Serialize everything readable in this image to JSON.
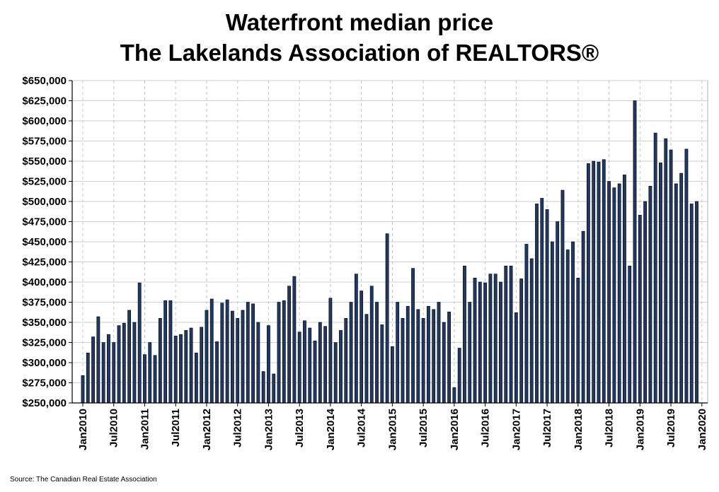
{
  "chart_data": {
    "type": "bar",
    "title": "Waterfront median price",
    "subtitle": "The Lakelands Association of REALTORS®",
    "xlabel": "",
    "ylabel": "",
    "ylim": [
      250000,
      650000
    ],
    "yticks": [
      250000,
      275000,
      300000,
      325000,
      350000,
      375000,
      400000,
      425000,
      450000,
      475000,
      500000,
      525000,
      550000,
      575000,
      600000,
      625000,
      650000
    ],
    "ytick_labels": [
      "$250,000",
      "$275,000",
      "$300,000",
      "$325,000",
      "$350,000",
      "$375,000",
      "$400,000",
      "$425,000",
      "$450,000",
      "$475,000",
      "$500,000",
      "$525,000",
      "$550,000",
      "$575,000",
      "$600,000",
      "$625,000",
      "$650,000"
    ],
    "xtick_labels": [
      "Jan2010",
      "Jul2010",
      "Jan2011",
      "Jul2011",
      "Jan2012",
      "Jul2012",
      "Jan2013",
      "Jul2013",
      "Jan2014",
      "Jul2014",
      "Jan2015",
      "Jul2015",
      "Jan2016",
      "Jul2016",
      "Jan2017",
      "Jul2017",
      "Jan2018",
      "Jul2018",
      "Jan2019",
      "Jul2019",
      "Jan2020"
    ],
    "grid": true,
    "bar_color": "#1f3864",
    "categories": [
      "Jan2010",
      "Feb2010",
      "Mar2010",
      "Apr2010",
      "May2010",
      "Jun2010",
      "Jul2010",
      "Aug2010",
      "Sep2010",
      "Oct2010",
      "Nov2010",
      "Dec2010",
      "Jan2011",
      "Feb2011",
      "Mar2011",
      "Apr2011",
      "May2011",
      "Jun2011",
      "Jul2011",
      "Aug2011",
      "Sep2011",
      "Oct2011",
      "Nov2011",
      "Dec2011",
      "Jan2012",
      "Feb2012",
      "Mar2012",
      "Apr2012",
      "May2012",
      "Jun2012",
      "Jul2012",
      "Aug2012",
      "Sep2012",
      "Oct2012",
      "Nov2012",
      "Dec2012",
      "Jan2013",
      "Feb2013",
      "Mar2013",
      "Apr2013",
      "May2013",
      "Jun2013",
      "Jul2013",
      "Aug2013",
      "Sep2013",
      "Oct2013",
      "Nov2013",
      "Dec2013",
      "Jan2014",
      "Feb2014",
      "Mar2014",
      "Apr2014",
      "May2014",
      "Jun2014",
      "Jul2014",
      "Aug2014",
      "Sep2014",
      "Oct2014",
      "Nov2014",
      "Dec2014",
      "Jan2015",
      "Feb2015",
      "Mar2015",
      "Apr2015",
      "May2015",
      "Jun2015",
      "Jul2015",
      "Aug2015",
      "Sep2015",
      "Oct2015",
      "Nov2015",
      "Dec2015",
      "Jan2016",
      "Feb2016",
      "Mar2016",
      "Apr2016",
      "May2016",
      "Jun2016",
      "Jul2016",
      "Aug2016",
      "Sep2016",
      "Oct2016",
      "Nov2016",
      "Dec2016",
      "Jan2017",
      "Feb2017",
      "Mar2017",
      "Apr2017",
      "May2017",
      "Jun2017",
      "Jul2017",
      "Aug2017",
      "Sep2017",
      "Oct2017",
      "Nov2017",
      "Dec2017",
      "Jan2018",
      "Feb2018",
      "Mar2018",
      "Apr2018",
      "May2018",
      "Jun2018",
      "Jul2018",
      "Aug2018",
      "Sep2018",
      "Oct2018",
      "Nov2018",
      "Dec2018",
      "Jan2019",
      "Feb2019",
      "Mar2019",
      "Apr2019",
      "May2019",
      "Jun2019",
      "Jul2019",
      "Aug2019",
      "Sep2019",
      "Oct2019",
      "Nov2019",
      "Dec2019"
    ],
    "values": [
      284000,
      312000,
      332000,
      357000,
      325000,
      335000,
      325000,
      346000,
      349000,
      365000,
      350000,
      399000,
      310000,
      325000,
      309000,
      355000,
      377000,
      377000,
      333000,
      335000,
      340000,
      343000,
      312000,
      344000,
      365000,
      379000,
      326000,
      374000,
      378000,
      364000,
      355000,
      365000,
      375000,
      373000,
      350000,
      289000,
      346000,
      286000,
      375000,
      377000,
      395000,
      407000,
      338000,
      352000,
      343000,
      327000,
      350000,
      345000,
      380000,
      325000,
      340000,
      355000,
      375000,
      410000,
      389000,
      360000,
      395000,
      375000,
      347000,
      460000,
      320000,
      375000,
      355000,
      370000,
      417000,
      366000,
      355000,
      370000,
      366000,
      375000,
      350000,
      363000,
      269000,
      318000,
      420000,
      375000,
      405000,
      400000,
      399000,
      410000,
      410000,
      400000,
      420000,
      420000,
      362000,
      404000,
      447000,
      429000,
      497000,
      504000,
      490000,
      450000,
      475000,
      514000,
      440000,
      450000,
      405000,
      463000,
      547000,
      550000,
      549000,
      552000,
      525000,
      517000,
      522000,
      533000,
      420000,
      625000,
      483000,
      500000,
      519000,
      585000,
      548000,
      578000,
      564000,
      522000,
      535000,
      565000,
      497000,
      500000
    ]
  },
  "footer": {
    "source": "Source: The Canadian Real Estate Association"
  }
}
